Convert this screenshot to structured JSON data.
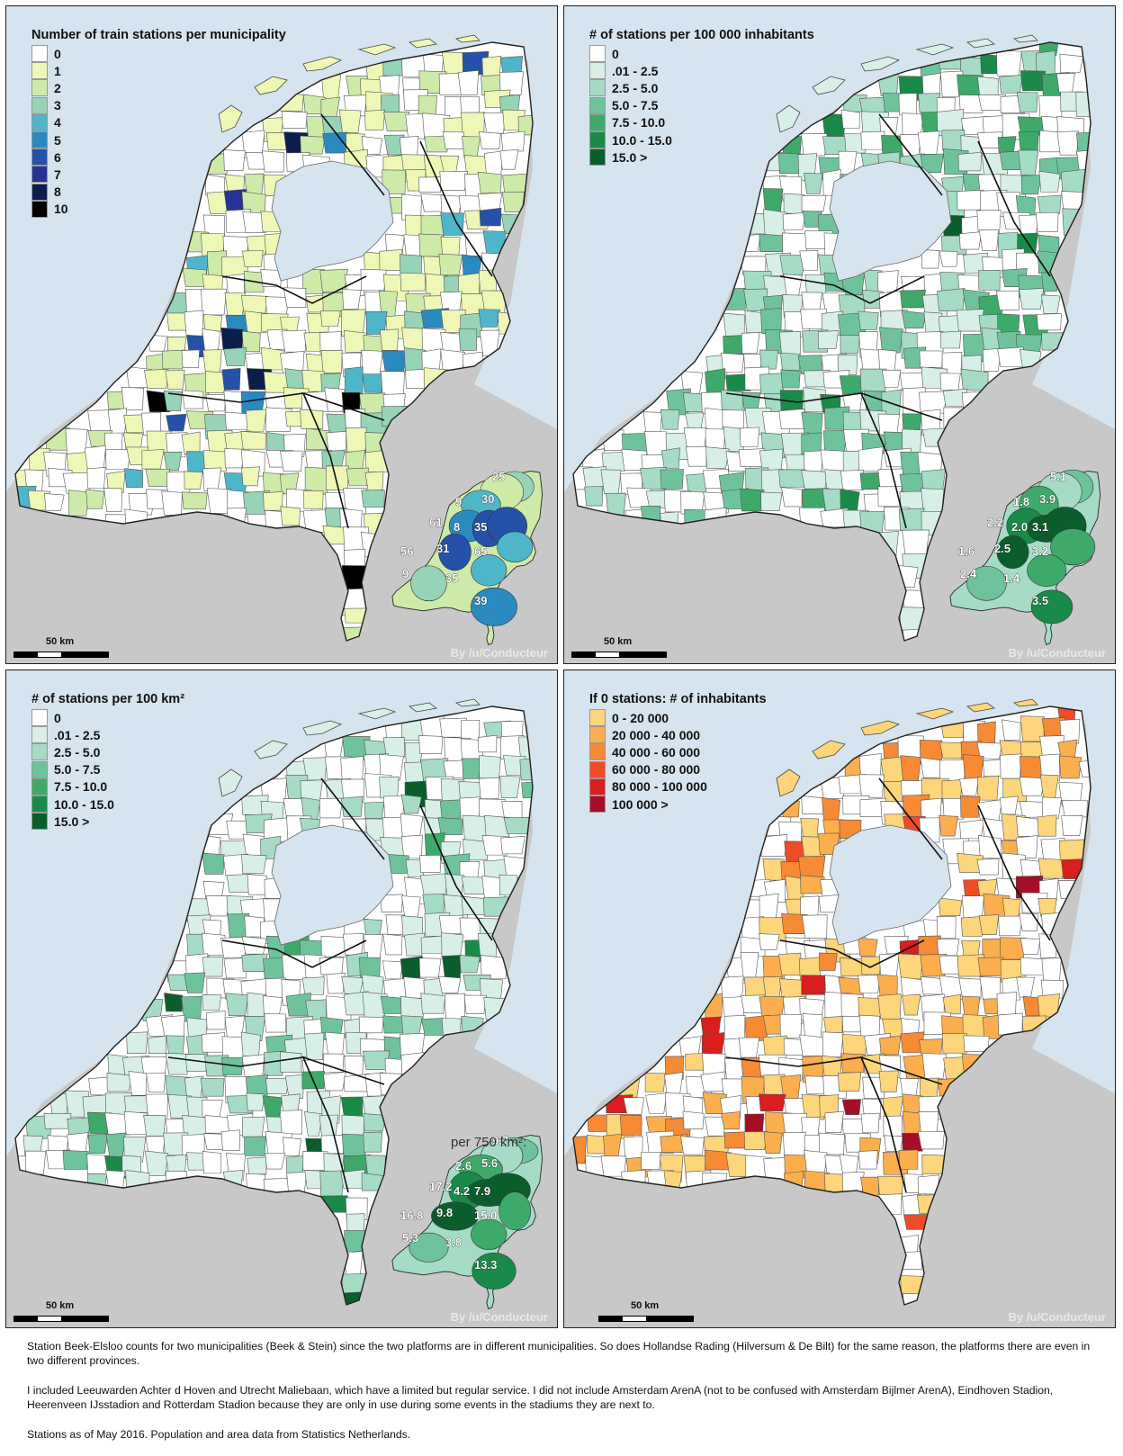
{
  "panels": [
    {
      "title": "Number of train stations per municipality",
      "palette": [
        "#ffffff",
        "#eef7b6",
        "#cdeaa9",
        "#96d3b7",
        "#4eb6c8",
        "#2a8ac0",
        "#2552a8",
        "#253494",
        "#0b1d4a",
        "#000000"
      ],
      "legend": [
        {
          "label": "0",
          "color": "#ffffff"
        },
        {
          "label": "1",
          "color": "#eef7b6"
        },
        {
          "label": "2",
          "color": "#cdeaa9"
        },
        {
          "label": "3",
          "color": "#96d3b7"
        },
        {
          "label": "4",
          "color": "#4eb6c8"
        },
        {
          "label": "5",
          "color": "#2a8ac0"
        },
        {
          "label": "6",
          "color": "#2552a8"
        },
        {
          "label": "7",
          "color": "#253494"
        },
        {
          "label": "8",
          "color": "#0b1d4a"
        },
        {
          "label": "10",
          "color": "#000000"
        }
      ],
      "inset_values": [
        "25",
        "30",
        "9",
        "61",
        "8",
        "35",
        "56",
        "31",
        "65",
        "9",
        "35",
        "39"
      ],
      "inset_caption": "",
      "scale_label": "50 km",
      "credit": "By /u/Conducteur"
    },
    {
      "title": "# of stations per 100 000 inhabitants",
      "palette": [
        "#ffffff",
        "#d7efe6",
        "#a6dbc6",
        "#6fc39c",
        "#3fa96a",
        "#198a48",
        "#0b5e2c"
      ],
      "legend": [
        {
          "label": "0",
          "color": "#ffffff"
        },
        {
          "label": ".01 - 2.5",
          "color": "#d7efe6"
        },
        {
          "label": "2.5 - 5.0",
          "color": "#a6dbc6"
        },
        {
          "label": "5.0 - 7.5",
          "color": "#6fc39c"
        },
        {
          "label": "7.5 - 10.0",
          "color": "#3fa96a"
        },
        {
          "label": "10.0 - 15.0",
          "color": "#198a48"
        },
        {
          "label": "15.0 >",
          "color": "#0b5e2c"
        }
      ],
      "inset_values": [
        "5.1",
        "3.9",
        "1.8",
        "2.2",
        "2.0",
        "3.1",
        "1.6",
        "2.5",
        "3.2",
        "2.4",
        "1.4",
        "3.5"
      ],
      "inset_caption": "",
      "scale_label": "50 km",
      "credit": "By /u/Conducteur"
    },
    {
      "title": "# of stations per 100 km²",
      "palette": [
        "#ffffff",
        "#d7efe6",
        "#a6dbc6",
        "#6fc39c",
        "#3fa96a",
        "#198a48",
        "#0b5e2c"
      ],
      "legend": [
        {
          "label": "0",
          "color": "#ffffff"
        },
        {
          "label": ".01 - 2.5",
          "color": "#d7efe6"
        },
        {
          "label": "2.5 - 5.0",
          "color": "#a6dbc6"
        },
        {
          "label": "5.0 - 7.5",
          "color": "#6fc39c"
        },
        {
          "label": "7.5 - 10.0",
          "color": "#3fa96a"
        },
        {
          "label": "10.0 - 15.0",
          "color": "#198a48"
        },
        {
          "label": "15.0 >",
          "color": "#0b5e2c"
        }
      ],
      "inset_values": [
        "9.7",
        "5.6",
        "2.6",
        "17.2",
        "4.2",
        "7.9",
        "16.8",
        "9.8",
        "15.0",
        "5.3",
        "3.8",
        "13.3"
      ],
      "inset_caption": "per 750 km²:",
      "scale_label": "50 km",
      "credit": "By /u/Conducteur"
    },
    {
      "title": "If 0 stations: # of inhabitants",
      "palette": [
        "#ffffff",
        "#fdd57a",
        "#fbae4e",
        "#f68a35",
        "#ef4c26",
        "#d81e1e",
        "#a50f26"
      ],
      "legend": [
        {
          "label": "0 - 20 000",
          "color": "#fdd57a"
        },
        {
          "label": "20 000 - 40 000",
          "color": "#fbae4e"
        },
        {
          "label": "40 000 - 60 000",
          "color": "#f68a35"
        },
        {
          "label": "60 000 - 80 000",
          "color": "#ef4c26"
        },
        {
          "label": "80 000 - 100 000",
          "color": "#d81e1e"
        },
        {
          "label": "100 000 >",
          "color": "#a50f26"
        }
      ],
      "inset_values": [],
      "inset_caption": "",
      "scale_label": "50 km",
      "credit": "By /u/Conducteur"
    }
  ],
  "colors": {
    "sea": "#d5e4ee",
    "land_outside": "#c8c8c8",
    "border": "#222222"
  },
  "notes": {
    "p1": "Station Beek-Elsloo counts for two municipalities (Beek & Stein) since the two platforms are in different municipalities. So does Hollandse Rading (Hilversum & De Bilt) for the same reason, the platforms there are even in two different provinces.",
    "p2": "I included Leeuwarden Achter d Hoven and Utrecht Maliebaan, which have a limited but regular service. I did not include Amsterdam ArenA (not to be confused with Amsterdam Bijlmer ArenA), Eindhoven Stadion, Heerenveen IJsstadion and Rotterdam Stadion because they are only in use during some events in the stadiums they are next to.",
    "p3": "Stations as of May 2016. Population and area data from Statistics Netherlands."
  }
}
